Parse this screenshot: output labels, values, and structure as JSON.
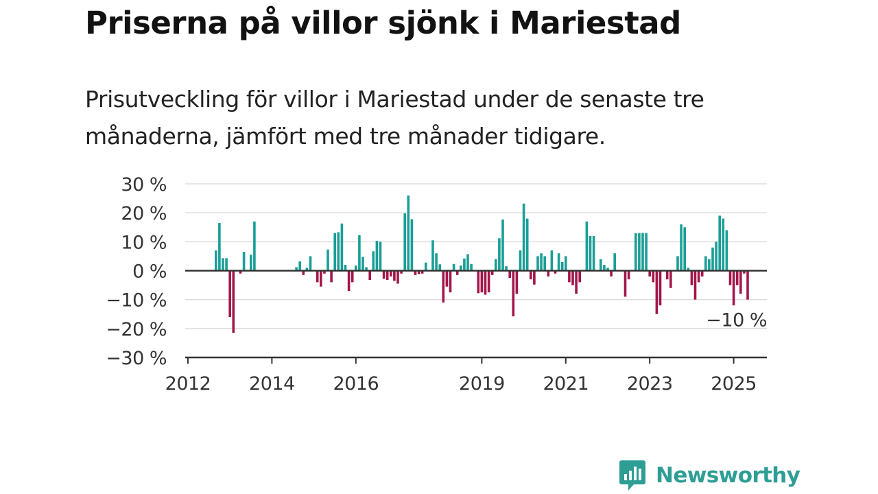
{
  "header": {
    "title": "Priserna på villor sjönk i Mariestad",
    "subtitle": "Prisutveckling för villor i Mariestad under de senaste tre månaderna, jämfört med tre månader tidigare."
  },
  "logo": {
    "text": "Newsworthy",
    "icon": "bar-chart-speech-bubble-icon"
  },
  "colors": {
    "positive": "#1a9e97",
    "negative": "#a3164a",
    "grid": "#dddddd",
    "axis": "#333333",
    "brand": "#2e9e95"
  },
  "chart_data": {
    "type": "bar",
    "title": "",
    "xlabel": "",
    "ylabel": "",
    "ylim": [
      -30,
      30
    ],
    "y_ticks": [
      30,
      20,
      10,
      0,
      -10,
      -20,
      -30
    ],
    "y_tick_labels": [
      "30 %",
      "20 %",
      "10 %",
      "0 %",
      "−10 %",
      "−20 %",
      "−30 %"
    ],
    "x_ticks": [
      "2012",
      "2014",
      "2016",
      "2019",
      "2021",
      "2023",
      "2025"
    ],
    "grid": true,
    "last_value_label": "−10 %",
    "series": [
      {
        "values": [
          {
            "x": "2012-09",
            "y": 7
          },
          {
            "x": "2012-10",
            "y": 16.5
          },
          {
            "x": "2012-11",
            "y": 4.3
          },
          {
            "x": "2012-12",
            "y": 4.3
          },
          {
            "x": "2013-01",
            "y": -16
          },
          {
            "x": "2013-02",
            "y": -21.5
          },
          {
            "x": "2013-03",
            "y": null
          },
          {
            "x": "2013-04",
            "y": -1
          },
          {
            "x": "2013-05",
            "y": 6.5
          },
          {
            "x": "2013-06",
            "y": null
          },
          {
            "x": "2013-07",
            "y": 5.5
          },
          {
            "x": "2013-08",
            "y": 17
          },
          {
            "x": "2014-08",
            "y": 1.2
          },
          {
            "x": "2014-09",
            "y": 3.2
          },
          {
            "x": "2014-10",
            "y": -1.5
          },
          {
            "x": "2014-11",
            "y": 1
          },
          {
            "x": "2014-12",
            "y": 5
          },
          {
            "x": "2015-01",
            "y": null
          },
          {
            "x": "2015-02",
            "y": -4
          },
          {
            "x": "2015-03",
            "y": -5.5
          },
          {
            "x": "2015-04",
            "y": -1
          },
          {
            "x": "2015-05",
            "y": 7.3
          },
          {
            "x": "2015-06",
            "y": -4
          },
          {
            "x": "2015-07",
            "y": 13
          },
          {
            "x": "2015-08",
            "y": 13.3
          },
          {
            "x": "2015-09",
            "y": 16.3
          },
          {
            "x": "2015-10",
            "y": 2
          },
          {
            "x": "2015-11",
            "y": -7
          },
          {
            "x": "2015-12",
            "y": -4
          },
          {
            "x": "2016-01",
            "y": 1.8
          },
          {
            "x": "2016-02",
            "y": 12.3
          },
          {
            "x": "2016-03",
            "y": 4.8
          },
          {
            "x": "2016-04",
            "y": 1.2
          },
          {
            "x": "2016-05",
            "y": -3.2
          },
          {
            "x": "2016-06",
            "y": 6.7
          },
          {
            "x": "2016-07",
            "y": 10.3
          },
          {
            "x": "2016-08",
            "y": 10
          },
          {
            "x": "2016-09",
            "y": -2.8
          },
          {
            "x": "2016-10",
            "y": -3.2
          },
          {
            "x": "2016-11",
            "y": -2
          },
          {
            "x": "2016-12",
            "y": -3.5
          },
          {
            "x": "2017-01",
            "y": -4.5
          },
          {
            "x": "2017-02",
            "y": -1
          },
          {
            "x": "2017-03",
            "y": 19.8
          },
          {
            "x": "2017-04",
            "y": 26
          },
          {
            "x": "2017-05",
            "y": 17.8
          },
          {
            "x": "2017-06",
            "y": -1.5
          },
          {
            "x": "2017-07",
            "y": -1.2
          },
          {
            "x": "2017-08",
            "y": -1
          },
          {
            "x": "2017-09",
            "y": 2.8
          },
          {
            "x": "2017-10",
            "y": null
          },
          {
            "x": "2017-11",
            "y": 10.5
          },
          {
            "x": "2017-12",
            "y": 6
          },
          {
            "x": "2018-01",
            "y": 2.2
          },
          {
            "x": "2018-02",
            "y": -11
          },
          {
            "x": "2018-03",
            "y": -5.5
          },
          {
            "x": "2018-04",
            "y": -7.5
          },
          {
            "x": "2018-05",
            "y": 2.3
          },
          {
            "x": "2018-06",
            "y": -1.5
          },
          {
            "x": "2018-07",
            "y": 1.8
          },
          {
            "x": "2018-08",
            "y": 4.2
          },
          {
            "x": "2018-09",
            "y": 5.7
          },
          {
            "x": "2018-10",
            "y": 2.3
          },
          {
            "x": "2018-11",
            "y": null
          },
          {
            "x": "2018-12",
            "y": -7.8
          },
          {
            "x": "2019-01",
            "y": -7.5
          },
          {
            "x": "2019-02",
            "y": -8.3
          },
          {
            "x": "2019-03",
            "y": -7.5
          },
          {
            "x": "2019-04",
            "y": -1.5
          },
          {
            "x": "2019-05",
            "y": 4
          },
          {
            "x": "2019-06",
            "y": 11.2
          },
          {
            "x": "2019-07",
            "y": 17.7
          },
          {
            "x": "2019-08",
            "y": 1.5
          },
          {
            "x": "2019-09",
            "y": -2.5
          },
          {
            "x": "2019-10",
            "y": -15.8
          },
          {
            "x": "2019-11",
            "y": -8
          },
          {
            "x": "2019-12",
            "y": 7
          },
          {
            "x": "2020-01",
            "y": 23.2
          },
          {
            "x": "2020-02",
            "y": 18
          },
          {
            "x": "2020-03",
            "y": -3
          },
          {
            "x": "2020-04",
            "y": -4.8
          },
          {
            "x": "2020-05",
            "y": 5
          },
          {
            "x": "2020-06",
            "y": 6
          },
          {
            "x": "2020-07",
            "y": 5
          },
          {
            "x": "2020-08",
            "y": -2
          },
          {
            "x": "2020-09",
            "y": 7
          },
          {
            "x": "2020-10",
            "y": -1
          },
          {
            "x": "2020-11",
            "y": 6
          },
          {
            "x": "2020-12",
            "y": 3
          },
          {
            "x": "2021-01",
            "y": 5
          },
          {
            "x": "2021-02",
            "y": -4
          },
          {
            "x": "2021-03",
            "y": -5
          },
          {
            "x": "2021-04",
            "y": -8
          },
          {
            "x": "2021-05",
            "y": -4
          },
          {
            "x": "2021-06",
            "y": null
          },
          {
            "x": "2021-07",
            "y": 17
          },
          {
            "x": "2021-08",
            "y": 12
          },
          {
            "x": "2021-09",
            "y": 12
          },
          {
            "x": "2021-10",
            "y": null
          },
          {
            "x": "2021-11",
            "y": 4
          },
          {
            "x": "2021-12",
            "y": 2
          },
          {
            "x": "2022-01",
            "y": 1
          },
          {
            "x": "2022-02",
            "y": -2
          },
          {
            "x": "2022-03",
            "y": 6
          },
          {
            "x": "2022-04",
            "y": null
          },
          {
            "x": "2022-05",
            "y": null
          },
          {
            "x": "2022-06",
            "y": -9
          },
          {
            "x": "2022-07",
            "y": -3
          },
          {
            "x": "2022-08",
            "y": null
          },
          {
            "x": "2022-09",
            "y": 13
          },
          {
            "x": "2022-10",
            "y": 13
          },
          {
            "x": "2022-11",
            "y": 13
          },
          {
            "x": "2022-12",
            "y": 13
          },
          {
            "x": "2023-01",
            "y": -2
          },
          {
            "x": "2023-02",
            "y": -4
          },
          {
            "x": "2023-03",
            "y": -15
          },
          {
            "x": "2023-04",
            "y": -12
          },
          {
            "x": "2023-05",
            "y": null
          },
          {
            "x": "2023-06",
            "y": -3
          },
          {
            "x": "2023-07",
            "y": -6
          },
          {
            "x": "2023-08",
            "y": null
          },
          {
            "x": "2023-09",
            "y": 5
          },
          {
            "x": "2023-10",
            "y": 16
          },
          {
            "x": "2023-11",
            "y": 15
          },
          {
            "x": "2023-12",
            "y": 1
          },
          {
            "x": "2024-01",
            "y": -5
          },
          {
            "x": "2024-02",
            "y": -10
          },
          {
            "x": "2024-03",
            "y": -4
          },
          {
            "x": "2024-04",
            "y": -2
          },
          {
            "x": "2024-05",
            "y": 5
          },
          {
            "x": "2024-06",
            "y": 4
          },
          {
            "x": "2024-07",
            "y": 8
          },
          {
            "x": "2024-08",
            "y": 10
          },
          {
            "x": "2024-09",
            "y": 19
          },
          {
            "x": "2024-10",
            "y": 18
          },
          {
            "x": "2024-11",
            "y": 14
          },
          {
            "x": "2024-12",
            "y": -5
          },
          {
            "x": "2025-01",
            "y": -12
          },
          {
            "x": "2025-02",
            "y": -5
          },
          {
            "x": "2025-03",
            "y": -8
          },
          {
            "x": "2025-04",
            "y": -1
          },
          {
            "x": "2025-05",
            "y": -10
          }
        ]
      }
    ]
  }
}
